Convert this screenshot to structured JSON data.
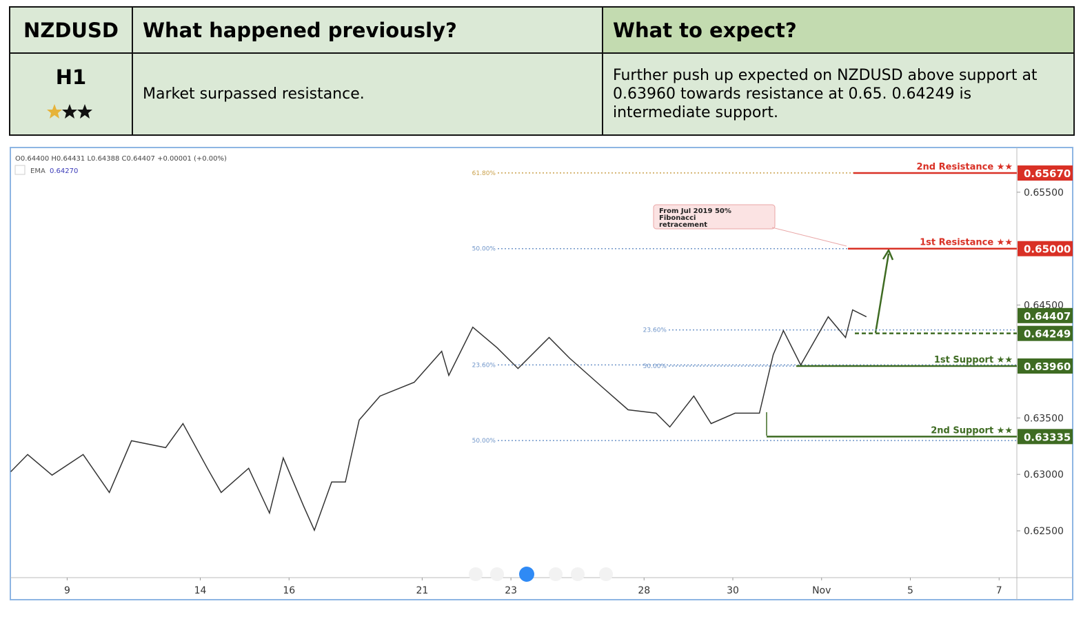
{
  "header": {
    "pair": "NZDUSD",
    "timeframe": "H1",
    "col_previous": "What happened previously?",
    "col_expect": "What to expect?",
    "previous": "Market surpassed resistance.",
    "expect": "Further push up expected on NZDUSD above support at 0.63960 towards resistance at 0.65. 0.64249 is intermediate support."
  },
  "chart_data": {
    "type": "line",
    "ohlc": "O0.64400 H0.64431 L0.64388 C0.64407 +0.00001 (+0.00%)",
    "ema_name": "EMA",
    "ema_value": "0.64270",
    "annotation": "From Jul 2019 50% Fibonacci retracement",
    "series": [
      {
        "name": "NZDUSD",
        "color": "#333333",
        "x": [
          -1.27,
          -0.89,
          -0.34,
          0.36,
          0.95,
          1.45,
          2.22,
          2.61,
          3.16,
          3.47,
          4.09,
          4.56,
          4.87,
          5.33,
          5.57,
          5.96,
          6.27,
          6.58,
          7.05,
          7.82,
          8.44,
          8.6,
          9.14,
          9.69,
          10.16,
          10.86,
          11.32,
          12.02,
          12.64,
          13.27,
          13.58,
          14.12,
          14.51,
          15.05,
          15.6,
          15.91,
          16.14,
          16.53,
          17.15,
          17.54,
          17.7,
          18.01
        ],
        "values": [
          0.63023,
          0.63176,
          0.62993,
          0.63176,
          0.6284,
          0.63298,
          0.63237,
          0.6345,
          0.63054,
          0.6284,
          0.63054,
          0.62657,
          0.63145,
          0.62718,
          0.62505,
          0.62932,
          0.62932,
          0.63481,
          0.63694,
          0.63816,
          0.64091,
          0.63877,
          0.64304,
          0.64121,
          0.63938,
          0.64213,
          0.6403,
          0.63786,
          0.63572,
          0.63542,
          0.6342,
          0.63694,
          0.6345,
          0.63542,
          0.63542,
          0.6406,
          0.64274,
          0.63969,
          0.64396,
          0.64213,
          0.64457,
          0.64396
        ]
      }
    ],
    "xlim": [
      -1.28,
      21.4
    ],
    "xticks": [
      {
        "value": 0,
        "label": "9"
      },
      {
        "value": 3,
        "label": "14"
      },
      {
        "value": 5,
        "label": "16"
      },
      {
        "value": 8,
        "label": "21"
      },
      {
        "value": 10,
        "label": "23"
      },
      {
        "value": 13,
        "label": "28"
      },
      {
        "value": 15,
        "label": "30"
      },
      {
        "value": 17,
        "label": "Nov"
      },
      {
        "value": 19,
        "label": "5"
      },
      {
        "value": 21,
        "label": "7"
      }
    ],
    "ylim": [
      0.62085,
      0.6589
    ],
    "yticks": [
      {
        "value": 0.625,
        "label": "0.62500"
      },
      {
        "value": 0.63,
        "label": "0.63000"
      },
      {
        "value": 0.635,
        "label": "0.63500"
      },
      {
        "value": 0.645,
        "label": "0.64500"
      },
      {
        "value": 0.655,
        "label": "0.65500"
      }
    ],
    "levels": [
      {
        "name": "2nd Resistance ★★",
        "value": 0.6567,
        "label": "0.65670",
        "color": "#d93025"
      },
      {
        "name": "1st Resistance ★★",
        "value": 0.65,
        "label": "0.65000",
        "color": "#d93025"
      },
      {
        "name": "1st Support ★★",
        "value": 0.6396,
        "label": "0.63960",
        "color": "#3e6b22"
      },
      {
        "name": "2nd Support ★★",
        "value": 0.63335,
        "label": "0.63335",
        "color": "#3e6b22"
      }
    ],
    "price_labels": [
      {
        "value": 0.64407,
        "label": "0.64407",
        "color": "#3e6b22"
      },
      {
        "value": 0.64249,
        "label": "0.64249",
        "color": "#3e6b22"
      }
    ],
    "fib": [
      {
        "label": "61.80%",
        "value": 0.65671,
        "color": "#c9a04a"
      },
      {
        "label": "50.00%",
        "value": 0.65,
        "color": "#6f95c9"
      },
      {
        "label": "23.60%",
        "value": 0.6428,
        "color": "#6f95c9"
      },
      {
        "label": "23.60%",
        "value": 0.6397,
        "color": "#6f95c9"
      },
      {
        "label": "50.00%",
        "value": 0.6396,
        "color": "#6f95c9"
      },
      {
        "label": "50.00%",
        "value": 0.633,
        "color": "#6f95c9"
      }
    ]
  }
}
